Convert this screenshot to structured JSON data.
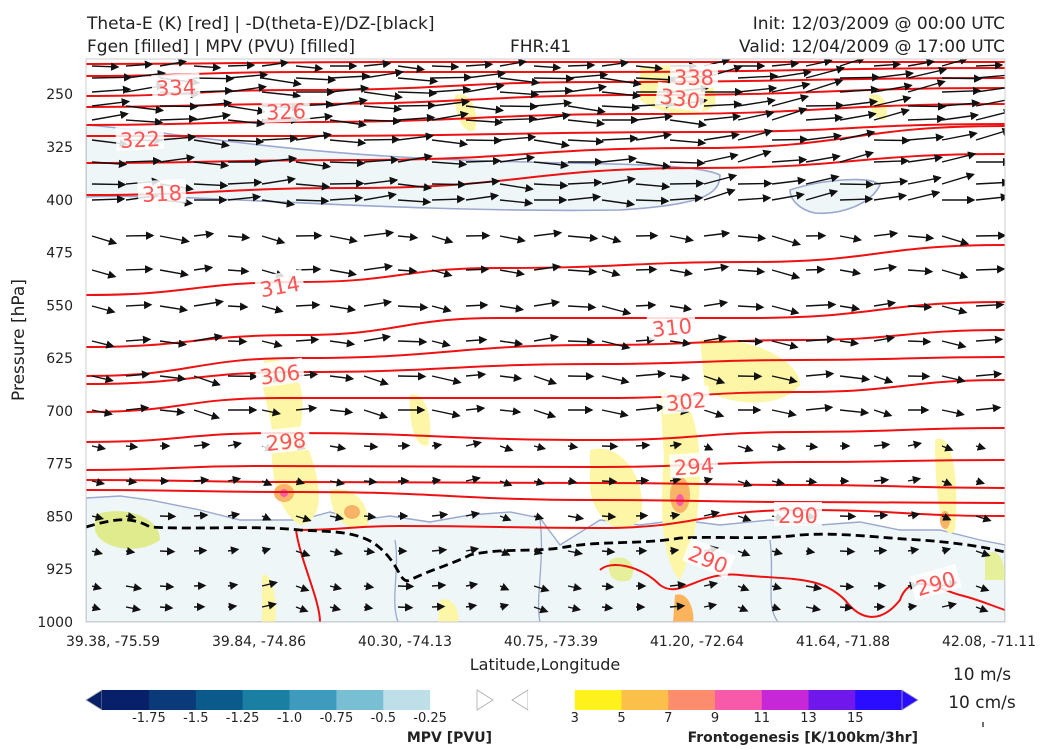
{
  "header": {
    "title_line1": "Theta-E (K) [red] | -D(theta-E)/DZ-[black]",
    "title_line2": "Fgen [filled] | MPV (PVU) [filled]",
    "fhr": "FHR:41",
    "init": "Init: 12/03/2009 @ 00:00 UTC",
    "valid": "Valid: 12/04/2009 @ 17:00 UTC"
  },
  "colors": {
    "theta_e": "#ee1111",
    "theta_e_label": "#ff5555",
    "ddz": "#000000",
    "mpv_outline": "#9ba8cf",
    "mpv_fill": "#eef6f8",
    "fgen_light": "#fdf6a6",
    "fgen_mid": "#fbb45c",
    "fgen_high": "#f55fa7"
  },
  "legend": {
    "wind_ref_top": "10 m/s",
    "wind_ref_bottom": "10 cm/s"
  },
  "chart_data": {
    "type": "cross-section",
    "xlabel": "Latitude,Longitude",
    "ylabel": "Pressure [hPa]",
    "x_ticks": [
      "39.38, -75.59",
      "39.84, -74.86",
      "40.30, -74.13",
      "40.75, -73.39",
      "41.20, -72.64",
      "41.64, -71.88",
      "42.08, -71.11"
    ],
    "y_ticks": [
      250,
      325,
      400,
      475,
      550,
      625,
      700,
      775,
      850,
      925,
      1000
    ],
    "y_range": [
      200,
      1000
    ],
    "theta_e_labels": [
      "338",
      "334",
      "330",
      "326",
      "322",
      "318",
      "314",
      "310",
      "306",
      "302",
      "298",
      "294",
      "290",
      "290",
      "290"
    ],
    "mpv_colorbar": {
      "label": "MPV [PVU]",
      "ticks": [
        "-1.75",
        "-1.5",
        "-1.25",
        "-1.0",
        "-0.75",
        "-0.5",
        "-0.25"
      ],
      "colors": [
        "#08206a",
        "#0a3a7a",
        "#0b5a8c",
        "#1a7fa3",
        "#3e9bbd",
        "#79bfd4",
        "#bfdfe8",
        "#ffffff"
      ]
    },
    "fgen_colorbar": {
      "label": "Frontogenesis [K/100km/3hr]",
      "ticks": [
        "3",
        "5",
        "7",
        "9",
        "11",
        "13",
        "15"
      ],
      "colors": [
        "#ffffff",
        "#fff11c",
        "#fcbf49",
        "#fb8c6d",
        "#f75aa8",
        "#c628d8",
        "#7017ec",
        "#2a0dff"
      ]
    }
  }
}
